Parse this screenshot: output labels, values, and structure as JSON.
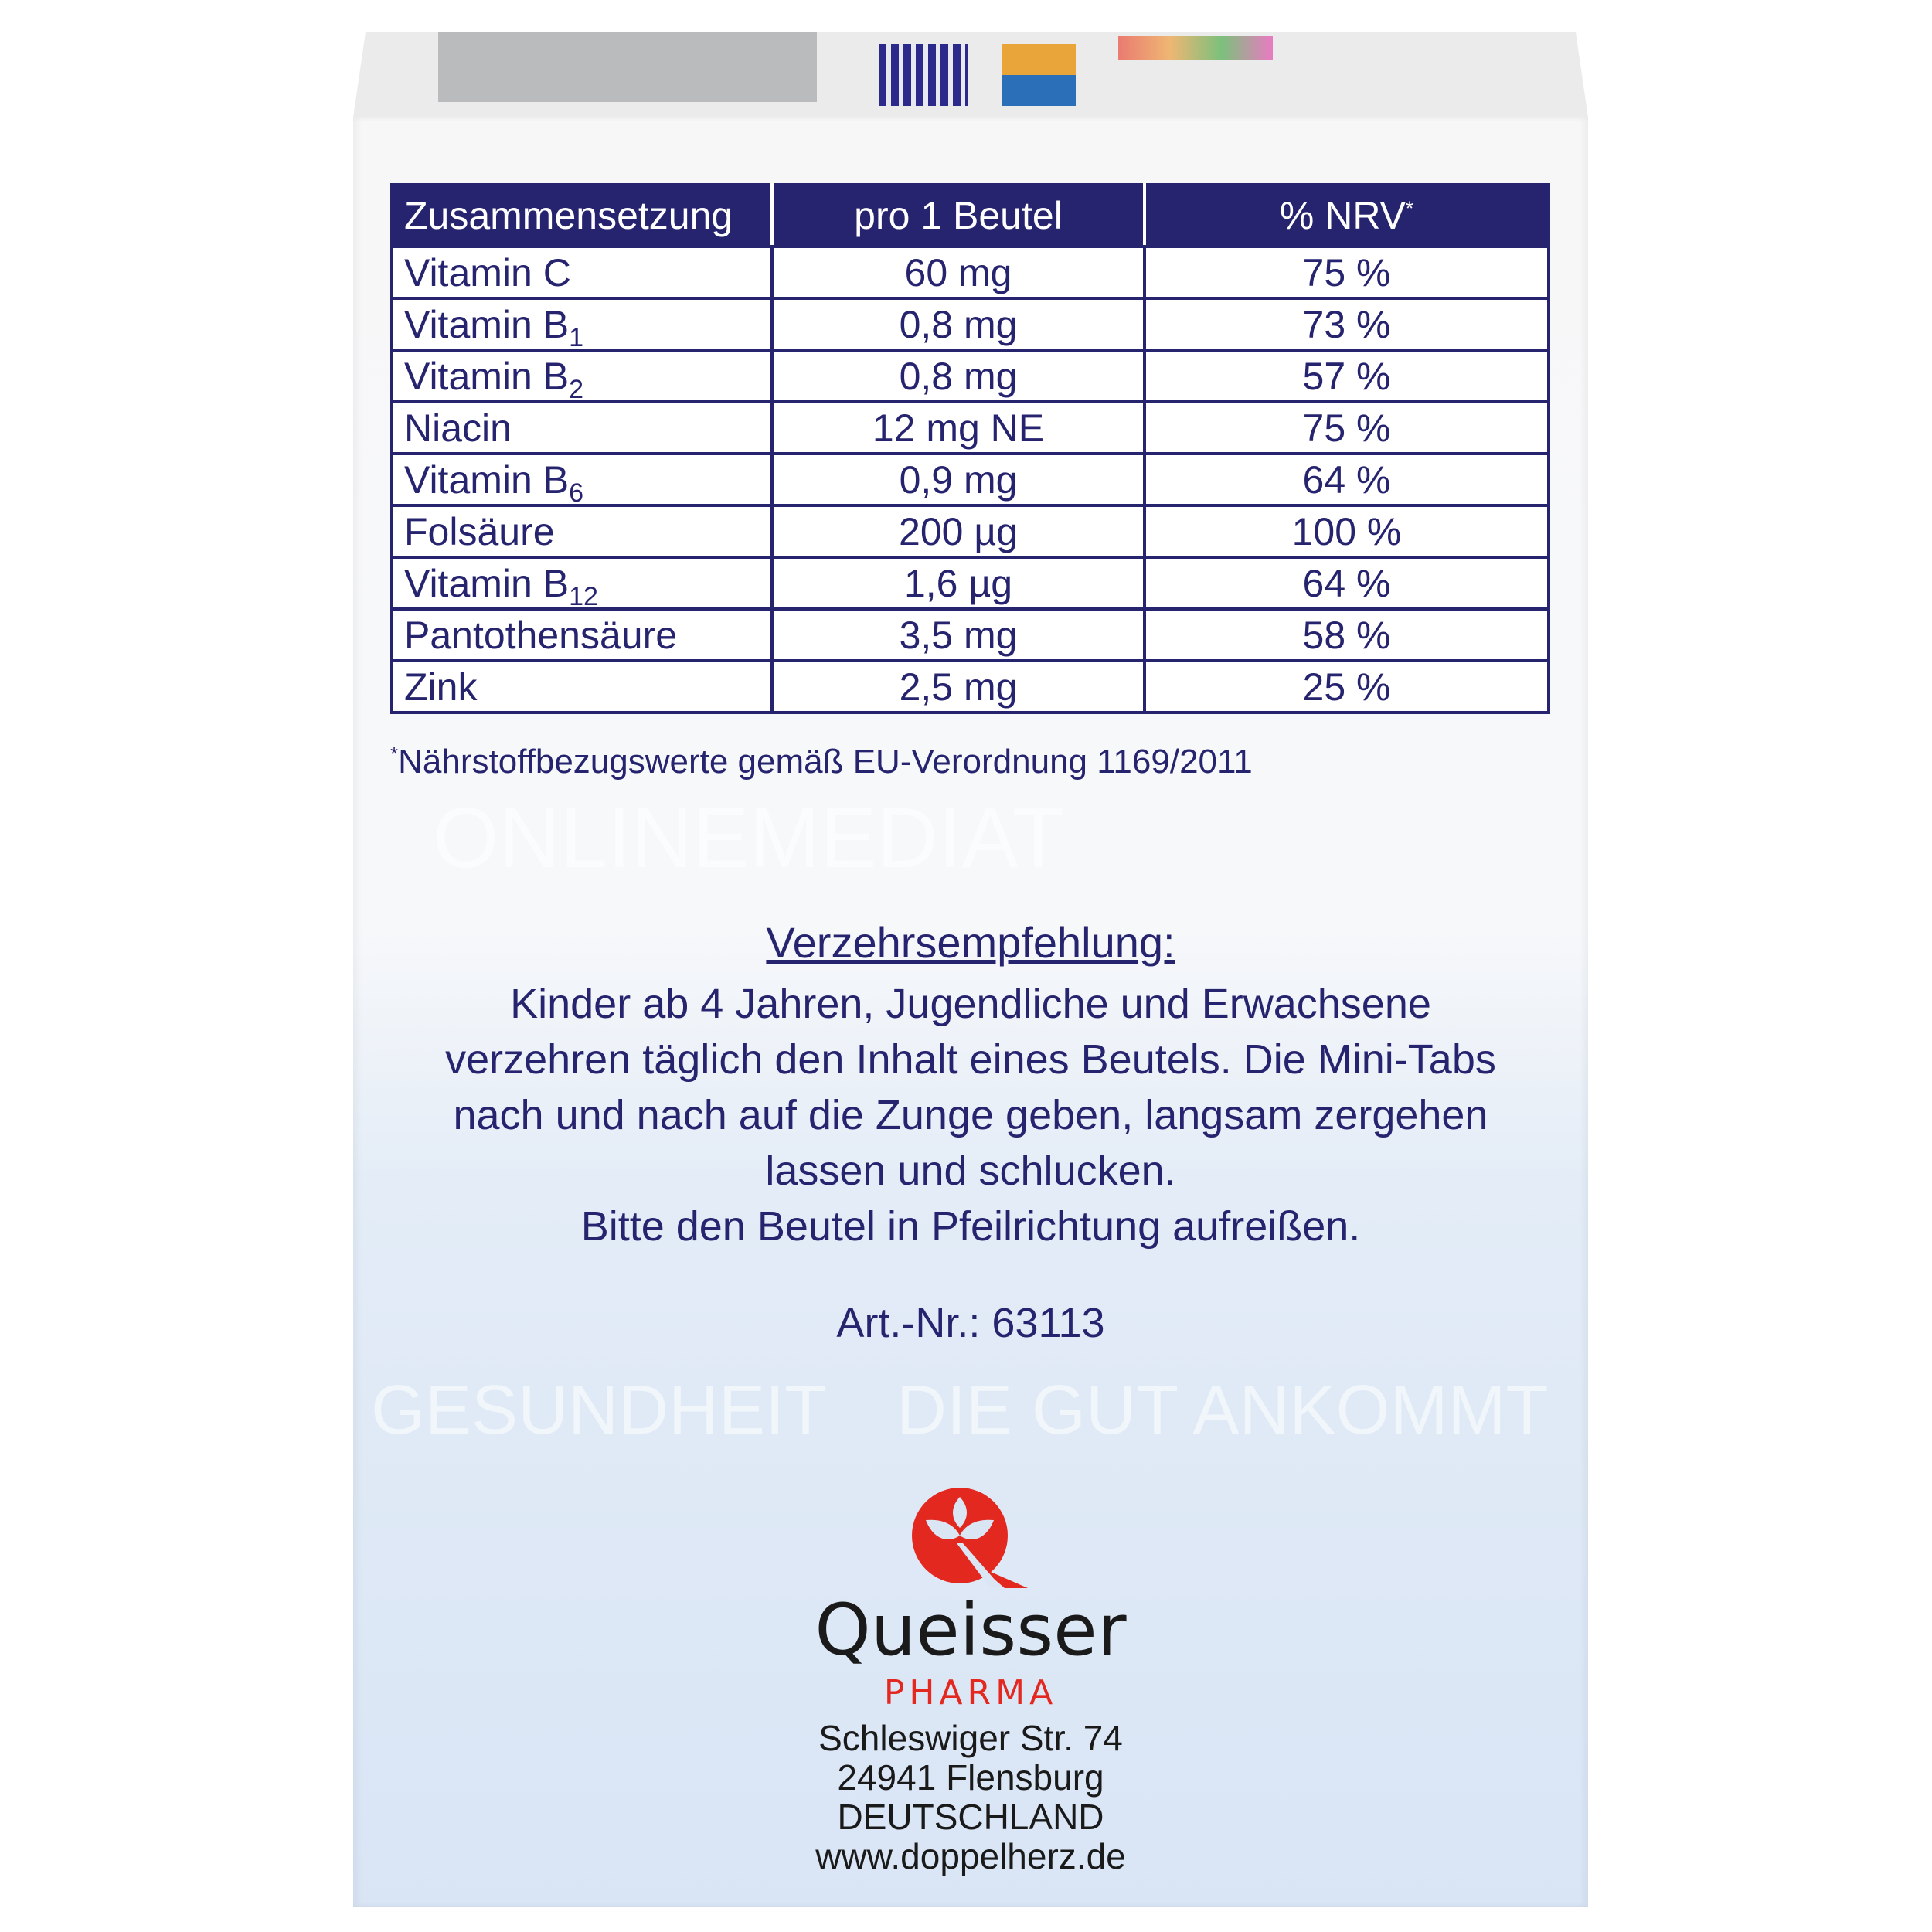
{
  "table": {
    "headers": [
      "Zusammensetzung",
      "pro 1 Beutel",
      "% NRV",
      "*"
    ],
    "rows": [
      {
        "name": "Vitamin C",
        "sub": "",
        "amount": "60 mg",
        "nrv": "75 %"
      },
      {
        "name": "Vitamin B",
        "sub": "1",
        "amount": "0,8 mg",
        "nrv": "73 %"
      },
      {
        "name": "Vitamin B",
        "sub": "2",
        "amount": "0,8 mg",
        "nrv": "57 %"
      },
      {
        "name": "Niacin",
        "sub": "",
        "amount": "12 mg NE",
        "nrv": "75 %"
      },
      {
        "name": "Vitamin B",
        "sub": "6",
        "amount": "0,9 mg",
        "nrv": "64 %"
      },
      {
        "name": "Folsäure",
        "sub": "",
        "amount": "200 µg",
        "nrv": "100 %"
      },
      {
        "name": "Vitamin B",
        "sub": "12",
        "amount": "1,6 µg",
        "nrv": "64 %"
      },
      {
        "name": "Pantothensäure",
        "sub": "",
        "amount": "3,5 mg",
        "nrv": "58 %"
      },
      {
        "name": "Zink",
        "sub": "",
        "amount": "2,5 mg",
        "nrv": "25 %"
      }
    ]
  },
  "footnote": {
    "mark": "*",
    "text": "Nährstoffbezugswerte gemäß  EU-Verordnung 1169/2011"
  },
  "recommendation": {
    "heading": "Verzehrsempfehlung:",
    "lines": [
      "Kinder ab 4 Jahren, Jugendliche und Erwachsene",
      "verzehren täglich den Inhalt eines Beutels. Die Mini-Tabs",
      "nach und nach auf die Zunge geben, langsam zergehen",
      "lassen und schlucken.",
      "Bitte den Beutel in Pfeilrichtung aufreißen."
    ],
    "article_number": "Art.-Nr.: 63113"
  },
  "watermark": [
    "ONLINEMEDIAT",
    "GESUNDHEIT",
    "DIE GUT ANKOMMT"
  ],
  "brand": {
    "name": "Queisser",
    "sub": "PHARMA",
    "red": "#e2281f"
  },
  "address": [
    "Schleswiger Str. 74",
    "24941 Flensburg",
    "DEUTSCHLAND",
    "www.doppelherz.de"
  ],
  "colors": {
    "navy": "#27246f",
    "background_bottom": "#d9e5f5"
  }
}
